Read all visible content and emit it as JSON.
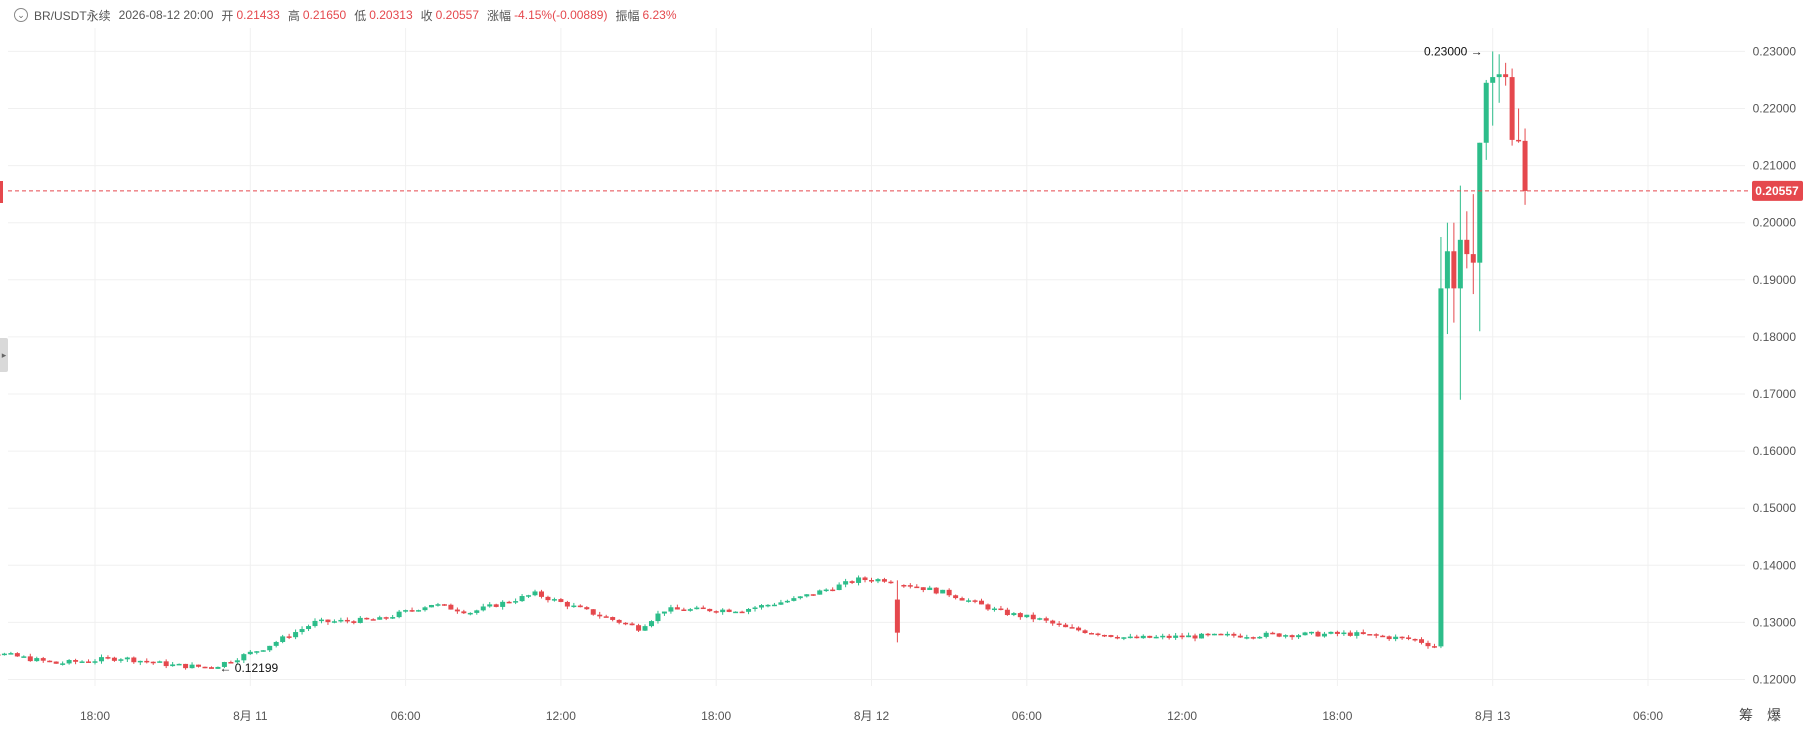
{
  "header": {
    "symbol": "BR/USDT永续",
    "datetime": "2026-08-12 20:00",
    "open_label": "开",
    "open": "0.21433",
    "high_label": "高",
    "high": "0.21650",
    "low_label": "低",
    "low": "0.20313",
    "close_label": "收",
    "close": "0.20557",
    "change_label": "涨幅",
    "change": "-4.15%(-0.00889)",
    "amplitude_label": "振幅",
    "amplitude": "6.23%"
  },
  "corner": {
    "a": "筹",
    "b": "爆"
  },
  "colors": {
    "up": "#2dbd8a",
    "down": "#e5484d",
    "grid": "#f0f0f0",
    "axis_text": "#555555"
  },
  "chart_data": {
    "type": "candlestick",
    "interval": "15m",
    "x_axis_ticks": [
      {
        "label": "18:00",
        "h": 18
      },
      {
        "label": "8月 11",
        "h": 24
      },
      {
        "label": "06:00",
        "h": 30
      },
      {
        "label": "12:00",
        "h": 36
      },
      {
        "label": "18:00",
        "h": 42
      },
      {
        "label": "8月 12",
        "h": 48
      },
      {
        "label": "06:00",
        "h": 54
      },
      {
        "label": "12:00",
        "h": 60
      },
      {
        "label": "18:00",
        "h": 66
      },
      {
        "label": "8月 13",
        "h": 72
      },
      {
        "label": "06:00",
        "h": 78
      }
    ],
    "y_axis_ticks": [
      "0.23000",
      "0.22000",
      "0.21000",
      "0.20000",
      "0.19000",
      "0.18000",
      "0.17000",
      "0.16000",
      "0.15000",
      "0.14000",
      "0.13000",
      "0.12000"
    ],
    "ylim": [
      0.1165,
      0.2315
    ],
    "last_price": "0.20557",
    "annotations": {
      "high_label": "0.23000",
      "low_label": "0.12199"
    },
    "ohlc": []
  }
}
